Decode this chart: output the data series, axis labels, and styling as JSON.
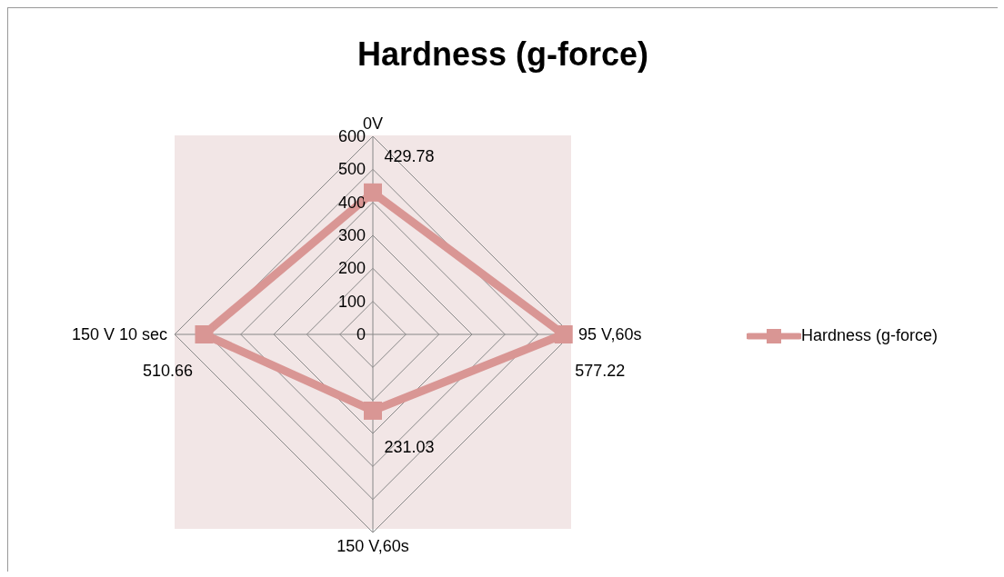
{
  "chart_data": {
    "type": "radar",
    "title": "Hardness (g-force)",
    "categories": [
      "0V",
      "95 V,60s",
      "150 V,60s",
      "150 V 10 sec"
    ],
    "series": [
      {
        "name": "Hardness (g-force)",
        "color": "#d99694",
        "values": [
          429.78,
          577.22,
          231.03,
          510.66
        ]
      }
    ],
    "ylim": [
      0,
      600
    ],
    "yticks": [
      0,
      100,
      200,
      300,
      400,
      500,
      600
    ],
    "grid": true,
    "legend": "right",
    "marker": "square",
    "data_labels": true
  }
}
